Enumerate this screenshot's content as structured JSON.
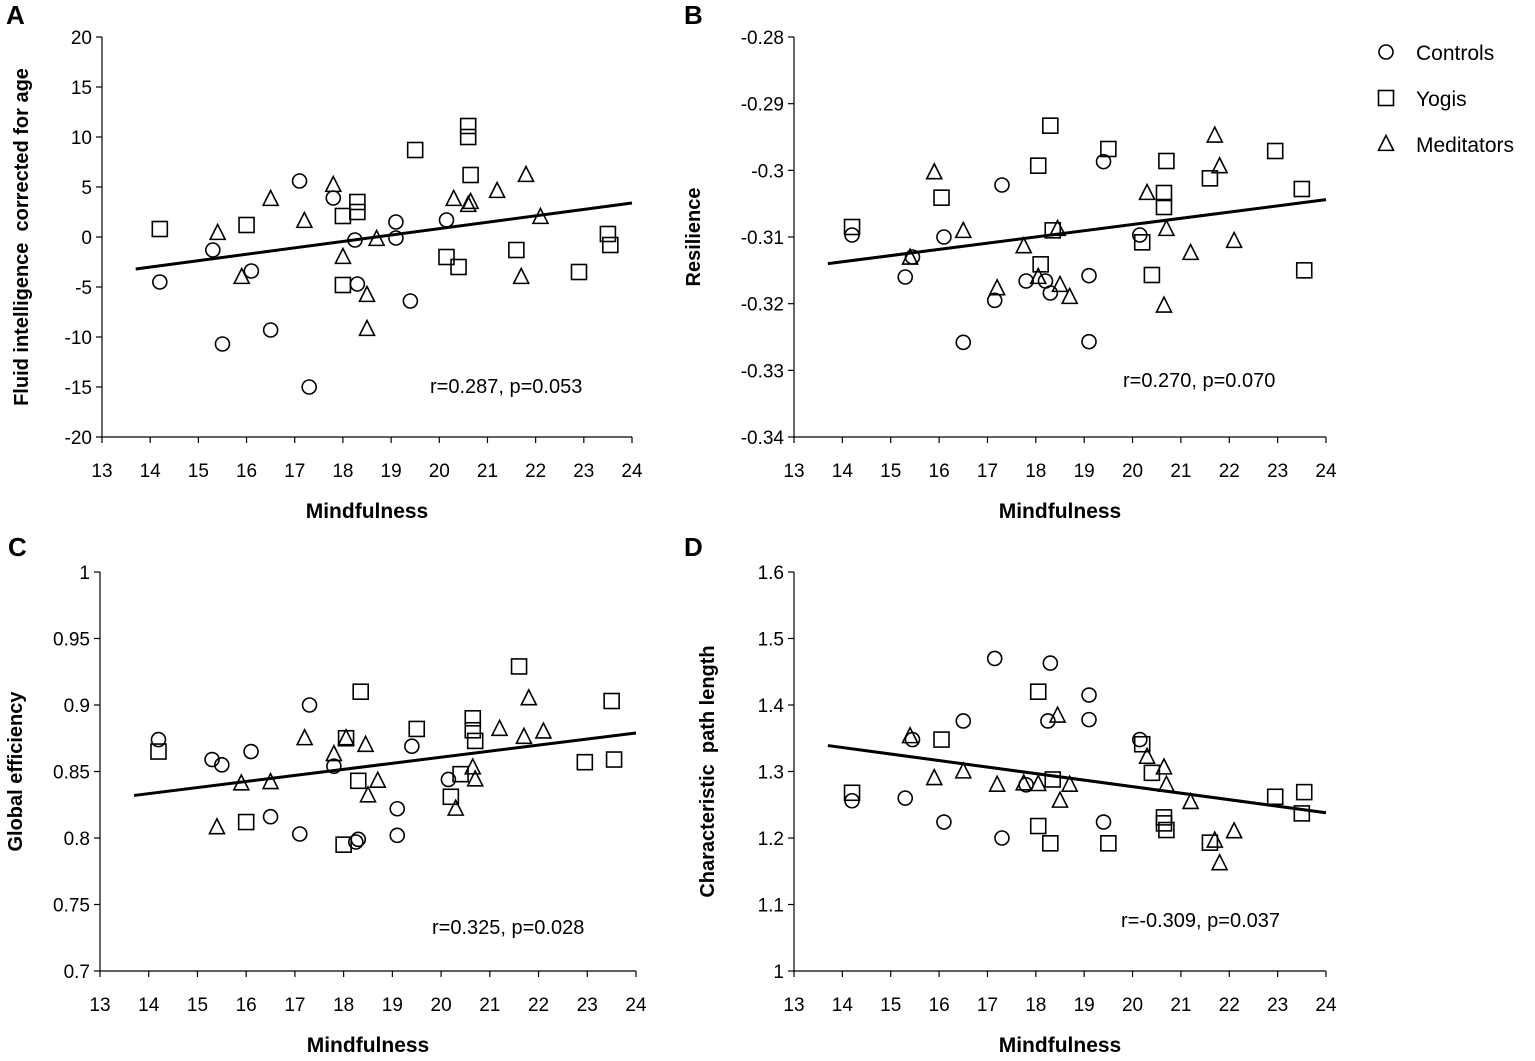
{
  "legend": {
    "entries": [
      {
        "label": "Controls",
        "marker": "circle"
      },
      {
        "label": "Yogis",
        "marker": "square"
      },
      {
        "label": "Meditators",
        "marker": "triangle"
      }
    ]
  },
  "chart_data": [
    {
      "panel": "A",
      "type": "scatter",
      "xlabel": "Mindfulness",
      "ylabel": "Fluid intelligence  corrected for age",
      "xlim": [
        13,
        24
      ],
      "ylim": [
        -20,
        20
      ],
      "xticks": [
        13,
        14,
        15,
        16,
        17,
        18,
        19,
        20,
        21,
        22,
        23,
        24
      ],
      "yticks": [
        20,
        15,
        10,
        5,
        0,
        -5,
        -10,
        -15,
        -20
      ],
      "annotation": "r=0.287, p=0.053",
      "fit_line": {
        "x": [
          13.7,
          24
        ],
        "y": [
          -3.2,
          3.4
        ]
      },
      "series": [
        {
          "name": "Controls",
          "marker": "circle",
          "points": [
            [
              14.2,
              -4.5
            ],
            [
              15.3,
              -1.3
            ],
            [
              15.5,
              -10.7
            ],
            [
              16.1,
              -3.4
            ],
            [
              16.5,
              -9.3
            ],
            [
              17.1,
              5.6
            ],
            [
              17.3,
              -15
            ],
            [
              17.8,
              3.9
            ],
            [
              18.25,
              -0.3
            ],
            [
              18.3,
              -4.7
            ],
            [
              19.1,
              -0.1
            ],
            [
              19.1,
              1.5
            ],
            [
              19.4,
              -6.4
            ],
            [
              20.15,
              1.7
            ]
          ]
        },
        {
          "name": "Yogis",
          "marker": "square",
          "points": [
            [
              14.2,
              0.8
            ],
            [
              16.0,
              1.2
            ],
            [
              18.0,
              2.1
            ],
            [
              18.0,
              -4.8
            ],
            [
              18.3,
              3.5
            ],
            [
              18.3,
              2.5
            ],
            [
              19.5,
              8.7
            ],
            [
              20.15,
              -2.0
            ],
            [
              20.4,
              -3.0
            ],
            [
              20.6,
              11.1
            ],
            [
              20.6,
              10.0
            ],
            [
              20.65,
              6.2
            ],
            [
              21.6,
              -1.3
            ],
            [
              22.9,
              -3.5
            ],
            [
              23.5,
              0.3
            ],
            [
              23.55,
              -0.8
            ]
          ]
        },
        {
          "name": "Meditators",
          "marker": "triangle",
          "points": [
            [
              15.4,
              0.4
            ],
            [
              15.9,
              -4.0
            ],
            [
              16.5,
              3.8
            ],
            [
              17.2,
              1.6
            ],
            [
              17.8,
              5.2
            ],
            [
              18.0,
              -2.0
            ],
            [
              18.5,
              -5.8
            ],
            [
              18.5,
              -9.2
            ],
            [
              18.7,
              -0.2
            ],
            [
              20.3,
              3.8
            ],
            [
              20.6,
              3.2
            ],
            [
              20.65,
              3.5
            ],
            [
              21.2,
              4.6
            ],
            [
              21.7,
              -4.0
            ],
            [
              21.8,
              6.2
            ],
            [
              22.1,
              2.0
            ]
          ]
        }
      ]
    },
    {
      "panel": "B",
      "type": "scatter",
      "xlabel": "Mindfulness",
      "ylabel": "Resilience",
      "xlim": [
        13,
        24
      ],
      "ylim": [
        -0.34,
        -0.28
      ],
      "xticks": [
        13,
        14,
        15,
        16,
        17,
        18,
        19,
        20,
        21,
        22,
        23,
        24
      ],
      "yticks": [
        -0.28,
        -0.29,
        -0.3,
        -0.31,
        -0.32,
        -0.33,
        -0.34
      ],
      "annotation": "r=0.270, p=0.070",
      "fit_line": {
        "x": [
          13.7,
          24
        ],
        "y": [
          -0.314,
          -0.3044
        ]
      },
      "series": [
        {
          "name": "Controls",
          "marker": "circle",
          "points": [
            [
              14.2,
              -0.3097
            ],
            [
              15.3,
              -0.316
            ],
            [
              15.45,
              -0.313
            ],
            [
              16.1,
              -0.31
            ],
            [
              16.5,
              -0.3258
            ],
            [
              17.15,
              -0.3195
            ],
            [
              17.3,
              -0.3022
            ],
            [
              17.8,
              -0.3166
            ],
            [
              18.2,
              -0.3166
            ],
            [
              18.3,
              -0.3184
            ],
            [
              19.1,
              -0.3158
            ],
            [
              19.1,
              -0.3257
            ],
            [
              19.4,
              -0.2987
            ],
            [
              20.15,
              -0.3097
            ]
          ]
        },
        {
          "name": "Yogis",
          "marker": "square",
          "points": [
            [
              14.2,
              -0.3085
            ],
            [
              16.05,
              -0.3041
            ],
            [
              18.05,
              -0.2993
            ],
            [
              18.1,
              -0.3141
            ],
            [
              18.3,
              -0.2933
            ],
            [
              18.35,
              -0.309
            ],
            [
              19.5,
              -0.2968
            ],
            [
              20.2,
              -0.3108
            ],
            [
              20.4,
              -0.3157
            ],
            [
              20.65,
              -0.3034
            ],
            [
              20.65,
              -0.3055
            ],
            [
              20.7,
              -0.2986
            ],
            [
              21.6,
              -0.3012
            ],
            [
              22.95,
              -0.2971
            ],
            [
              23.5,
              -0.3028
            ],
            [
              23.55,
              -0.315
            ]
          ]
        },
        {
          "name": "Meditators",
          "marker": "triangle",
          "points": [
            [
              15.4,
              -0.3131
            ],
            [
              15.9,
              -0.3003
            ],
            [
              16.5,
              -0.3091
            ],
            [
              17.2,
              -0.3177
            ],
            [
              17.75,
              -0.3114
            ],
            [
              18.05,
              -0.316
            ],
            [
              18.45,
              -0.3088
            ],
            [
              18.5,
              -0.3172
            ],
            [
              18.7,
              -0.319
            ],
            [
              20.3,
              -0.3034
            ],
            [
              20.65,
              -0.3203
            ],
            [
              20.7,
              -0.3088
            ],
            [
              21.2,
              -0.3124
            ],
            [
              21.7,
              -0.2948
            ],
            [
              21.8,
              -0.2994
            ],
            [
              22.1,
              -0.3106
            ]
          ]
        }
      ]
    },
    {
      "panel": "C",
      "type": "scatter",
      "xlabel": "Mindfulness",
      "ylabel": "Global efficiency",
      "xlim": [
        13,
        24
      ],
      "ylim": [
        0.7,
        1
      ],
      "xticks": [
        13,
        14,
        15,
        16,
        17,
        18,
        19,
        20,
        21,
        22,
        23,
        24
      ],
      "yticks": [
        1,
        0.95,
        0.9,
        0.85,
        0.8,
        0.75,
        0.7
      ],
      "annotation": "r=0.325, p=0.028",
      "fit_line": {
        "x": [
          13.7,
          24
        ],
        "y": [
          0.832,
          0.879
        ]
      },
      "series": [
        {
          "name": "Controls",
          "marker": "circle",
          "points": [
            [
              14.2,
              0.874
            ],
            [
              15.3,
              0.859
            ],
            [
              15.5,
              0.855
            ],
            [
              16.1,
              0.865
            ],
            [
              16.5,
              0.816
            ],
            [
              17.1,
              0.803
            ],
            [
              17.3,
              0.9
            ],
            [
              17.8,
              0.854
            ],
            [
              18.25,
              0.797
            ],
            [
              18.3,
              0.799
            ],
            [
              19.1,
              0.822
            ],
            [
              19.1,
              0.802
            ],
            [
              19.4,
              0.869
            ],
            [
              20.15,
              0.844
            ]
          ]
        },
        {
          "name": "Yogis",
          "marker": "square",
          "points": [
            [
              14.2,
              0.865
            ],
            [
              16.0,
              0.812
            ],
            [
              18.0,
              0.795
            ],
            [
              18.05,
              0.875
            ],
            [
              18.3,
              0.843
            ],
            [
              18.35,
              0.91
            ],
            [
              19.5,
              0.882
            ],
            [
              20.2,
              0.831
            ],
            [
              20.4,
              0.848
            ],
            [
              20.65,
              0.89
            ],
            [
              20.65,
              0.881
            ],
            [
              20.7,
              0.873
            ],
            [
              21.6,
              0.929
            ],
            [
              22.95,
              0.857
            ],
            [
              23.5,
              0.903
            ],
            [
              23.55,
              0.859
            ]
          ]
        },
        {
          "name": "Meditators",
          "marker": "triangle",
          "points": [
            [
              15.4,
              0.808
            ],
            [
              15.9,
              0.841
            ],
            [
              16.5,
              0.842
            ],
            [
              17.2,
              0.875
            ],
            [
              17.8,
              0.863
            ],
            [
              18.05,
              0.875
            ],
            [
              18.45,
              0.87
            ],
            [
              18.5,
              0.832
            ],
            [
              18.7,
              0.843
            ],
            [
              20.3,
              0.822
            ],
            [
              20.65,
              0.853
            ],
            [
              20.7,
              0.844
            ],
            [
              21.2,
              0.882
            ],
            [
              21.7,
              0.876
            ],
            [
              21.8,
              0.905
            ],
            [
              22.1,
              0.88
            ]
          ]
        }
      ]
    },
    {
      "panel": "D",
      "type": "scatter",
      "xlabel": "Mindfulness",
      "ylabel": "Characteristic  path length",
      "xlim": [
        13,
        24
      ],
      "ylim": [
        1,
        1.6
      ],
      "xticks": [
        13,
        14,
        15,
        16,
        17,
        18,
        19,
        20,
        21,
        22,
        23,
        24
      ],
      "yticks": [
        1.6,
        1.5,
        1.4,
        1.3,
        1.2,
        1.1,
        1
      ],
      "annotation": "r=-0.309, p=0.037",
      "fit_line": {
        "x": [
          13.7,
          24
        ],
        "y": [
          1.339,
          1.238
        ]
      },
      "series": [
        {
          "name": "Controls",
          "marker": "circle",
          "points": [
            [
              14.2,
              1.256
            ],
            [
              15.3,
              1.26
            ],
            [
              15.45,
              1.348
            ],
            [
              16.1,
              1.224
            ],
            [
              16.5,
              1.376
            ],
            [
              17.15,
              1.47
            ],
            [
              17.3,
              1.2
            ],
            [
              17.8,
              1.28
            ],
            [
              18.25,
              1.376
            ],
            [
              18.3,
              1.463
            ],
            [
              19.1,
              1.415
            ],
            [
              19.1,
              1.378
            ],
            [
              19.4,
              1.224
            ],
            [
              20.15,
              1.348
            ]
          ]
        },
        {
          "name": "Yogis",
          "marker": "square",
          "points": [
            [
              14.2,
              1.268
            ],
            [
              16.05,
              1.348
            ],
            [
              18.05,
              1.42
            ],
            [
              18.05,
              1.218
            ],
            [
              18.3,
              1.192
            ],
            [
              18.35,
              1.288
            ],
            [
              19.5,
              1.192
            ],
            [
              20.2,
              1.341
            ],
            [
              20.4,
              1.298
            ],
            [
              20.65,
              1.231
            ],
            [
              20.65,
              1.222
            ],
            [
              20.7,
              1.212
            ],
            [
              21.6,
              1.193
            ],
            [
              22.95,
              1.262
            ],
            [
              23.5,
              1.237
            ],
            [
              23.55,
              1.269
            ]
          ]
        },
        {
          "name": "Meditators",
          "marker": "triangle",
          "points": [
            [
              15.4,
              1.353
            ],
            [
              15.9,
              1.29
            ],
            [
              16.5,
              1.3
            ],
            [
              17.2,
              1.28
            ],
            [
              17.75,
              1.282
            ],
            [
              18.05,
              1.281
            ],
            [
              18.45,
              1.384
            ],
            [
              18.5,
              1.256
            ],
            [
              18.7,
              1.28
            ],
            [
              20.3,
              1.322
            ],
            [
              20.65,
              1.306
            ],
            [
              20.7,
              1.28
            ],
            [
              21.2,
              1.254
            ],
            [
              21.7,
              1.196
            ],
            [
              21.8,
              1.162
            ],
            [
              22.1,
              1.21
            ]
          ]
        }
      ]
    }
  ]
}
